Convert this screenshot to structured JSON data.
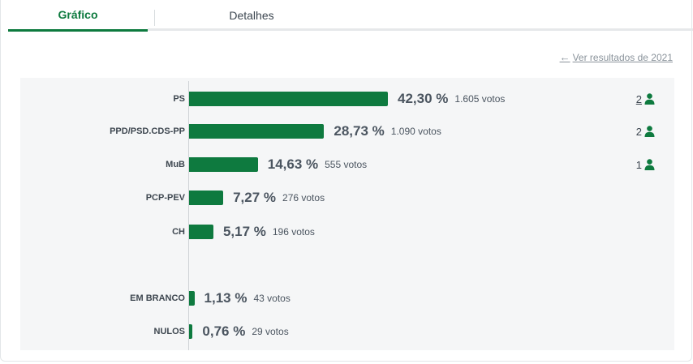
{
  "tabs": [
    {
      "label": "Gráfico",
      "active": true
    },
    {
      "label": "Detalhes",
      "active": false
    }
  ],
  "link": {
    "arrow": "←",
    "label": "Ver resultados de 2021"
  },
  "accent_color": "#0e7a3f",
  "chart_data": {
    "type": "bar",
    "orientation": "horizontal",
    "categories": [
      "PS",
      "PPD/PSD.CDS-PP",
      "MuB",
      "PCP-PEV",
      "CH",
      "EM BRANCO",
      "NULOS"
    ],
    "values": [
      42.3,
      28.73,
      14.63,
      7.27,
      5.17,
      1.13,
      0.76
    ],
    "value_labels": [
      "42,30 %",
      "28,73 %",
      "14,63 %",
      "7,27 %",
      "5,17 %",
      "1,13 %",
      "0,76 %"
    ],
    "votes": [
      "1.605 votos",
      "1.090 votos",
      "555 votos",
      "276 votos",
      "196 votos",
      "43 votos",
      "29 votos"
    ],
    "seats": [
      "2",
      "2",
      "1",
      "",
      "",
      "",
      ""
    ],
    "seat_icon": "person-icon",
    "xlim": [
      0,
      100
    ]
  }
}
